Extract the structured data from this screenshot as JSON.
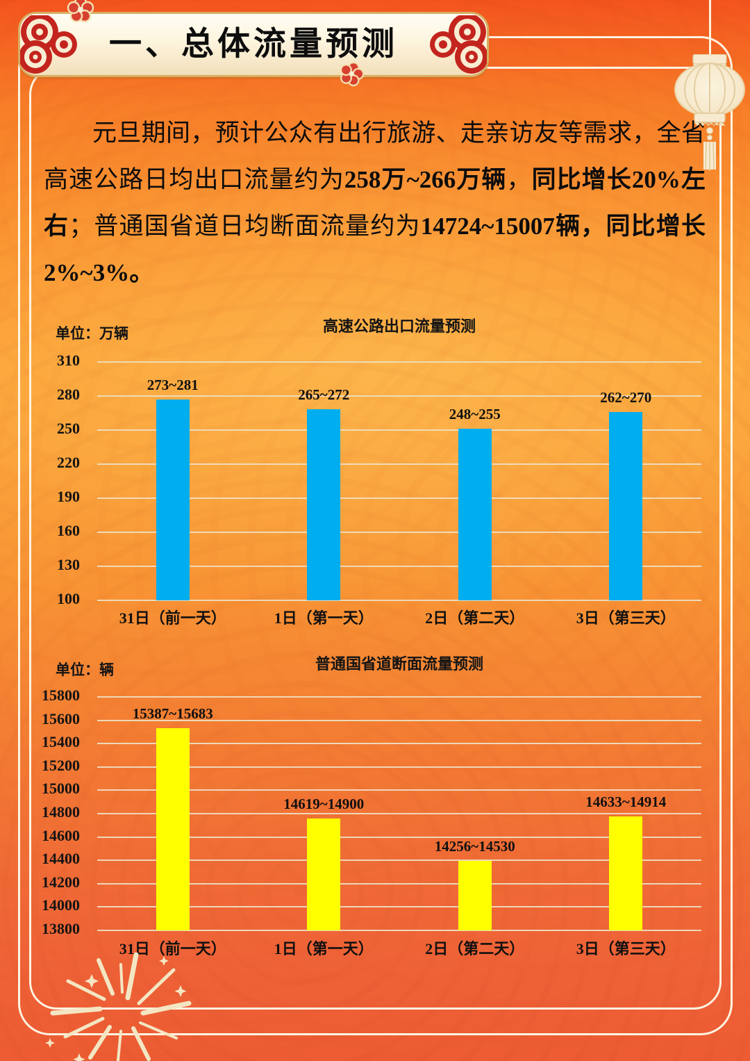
{
  "header": {
    "title": "一、总体流量预测"
  },
  "intro": {
    "runs": [
      {
        "text": "元旦期间，预计公众有出行旅游、走亲访友等需求，全省高速公路日均出口流量约为",
        "bold": false
      },
      {
        "text": "258万~266万辆",
        "bold": true
      },
      {
        "text": "，",
        "bold": false
      },
      {
        "text": "同比增长20%左右",
        "bold": true
      },
      {
        "text": "；普通国省道日均断面流量约为",
        "bold": false
      },
      {
        "text": "14724~15007辆，同比增长2%~3%。",
        "bold": true
      }
    ]
  },
  "chart_data": [
    {
      "type": "bar",
      "title": "高速公路出口流量预测",
      "unit_label": "单位：万辆",
      "categories": [
        "31日（前一天）",
        "1日（第一天）",
        "2日（第二天）",
        "3日（第三天）"
      ],
      "bar_labels": [
        "273~281",
        "265~272",
        "248~255",
        "262~270"
      ],
      "values_mid": [
        277,
        268.5,
        251.5,
        266
      ],
      "ylim": [
        100,
        310
      ],
      "yticks": [
        310,
        280,
        250,
        220,
        190,
        160,
        130,
        100
      ],
      "bar_color": "#00aeef",
      "grid": true,
      "legend": "none"
    },
    {
      "type": "bar",
      "title": "普通国省道断面流量预测",
      "unit_label": "单位：辆",
      "categories": [
        "31日（前一天）",
        "1日（第一天）",
        "2日（第二天）",
        "3日（第三天）"
      ],
      "bar_labels": [
        "15387~15683",
        "14619~14900",
        "14256~14530",
        "14633~14914"
      ],
      "values_mid": [
        15535,
        14760,
        14393,
        14774
      ],
      "ylim": [
        13800,
        15800
      ],
      "yticks": [
        15800,
        15600,
        15400,
        15200,
        15000,
        14800,
        14600,
        14400,
        14200,
        14000,
        13800
      ],
      "bar_color": "#ffff00",
      "grid": true,
      "legend": "none"
    }
  ],
  "colors": {
    "bar_blue": "#00aeef",
    "bar_yellow": "#ffff00",
    "gridline": "#eee0c4",
    "text": "#141414",
    "frame": "#fdf4e2",
    "banner_gold": "#d7ae62",
    "ornament_red": "#c3251e"
  }
}
